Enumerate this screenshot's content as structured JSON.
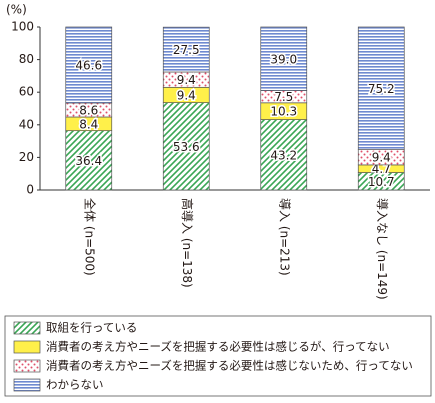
{
  "chart_data": {
    "type": "stacked_bar",
    "y_unit": "(%)",
    "categories": [
      "全体 (n=500)",
      "高導入 (n=138)",
      "導入 (n=213)",
      "導入なし (n=149)"
    ],
    "series": [
      {
        "name": "取組を行っている",
        "color": "#3aa655",
        "values": [
          36.4,
          53.6,
          43.2,
          10.7
        ]
      },
      {
        "name": "消費者の考え方やニーズを把握する必要性は感じるが、行ってない",
        "color": "#fff04a",
        "values": [
          8.4,
          9.4,
          10.3,
          4.7
        ]
      },
      {
        "name": "消費者の考え方やニーズを把握する必要性は感じないため、行ってない",
        "color": "#e0506a",
        "values": [
          8.6,
          9.4,
          7.5,
          9.4
        ]
      },
      {
        "name": "わからない",
        "color": "#6f8ad0",
        "values": [
          46.6,
          27.5,
          39.0,
          75.2
        ],
        "value_labels": [
          "46.6",
          "27.5",
          "39.0",
          "75.2"
        ]
      }
    ],
    "ylim": [
      0,
      100
    ],
    "yticks": [
      0,
      20,
      40,
      60,
      80,
      100
    ],
    "grid": false
  }
}
